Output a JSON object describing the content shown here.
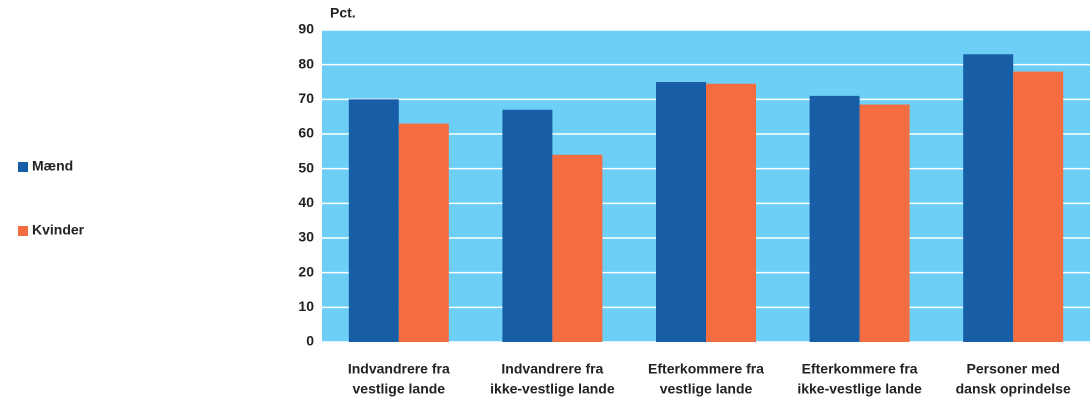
{
  "chart_data": {
    "type": "bar",
    "y_label": "Pct.",
    "categories": [
      [
        "Indvandrere fra",
        "vestlige lande"
      ],
      [
        "Indvandrere fra",
        "ikke-vestlige lande"
      ],
      [
        "Efterkommere fra",
        "vestlige lande"
      ],
      [
        "Efterkommere fra",
        "ikke-vestlige lande"
      ],
      [
        "Personer med",
        "dansk oprindelse"
      ]
    ],
    "series": [
      {
        "name": "Mænd",
        "color": "#175ea6",
        "values": [
          70,
          67,
          75,
          71,
          83
        ]
      },
      {
        "name": "Kvinder",
        "color": "#f36d40",
        "values": [
          63,
          54,
          74.5,
          68.5,
          78
        ]
      }
    ],
    "ylim": [
      0,
      90
    ],
    "yticks": [
      0,
      10,
      20,
      30,
      40,
      50,
      60,
      70,
      80,
      90
    ],
    "grid": true,
    "plot_background": "#6dcff6",
    "legend": "left"
  }
}
